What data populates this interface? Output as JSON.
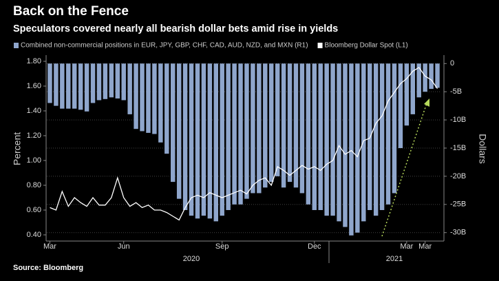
{
  "chart_data": {
    "type": "bar-line",
    "title": "Back on the Fence",
    "subtitle": "Speculators covered nearly all bearish dollar bets amid rise in yields",
    "source": "Source: Bloomberg",
    "ylabel": "Percent",
    "y2label": "Dollars",
    "year_labels": [
      "2020",
      "2021"
    ],
    "categories": [
      "Mar",
      null,
      null,
      null,
      null,
      null,
      null,
      null,
      null,
      null,
      null,
      null,
      "Jun",
      null,
      null,
      null,
      null,
      null,
      null,
      null,
      null,
      null,
      null,
      null,
      null,
      null,
      null,
      null,
      "Sep",
      null,
      null,
      null,
      null,
      null,
      null,
      null,
      null,
      null,
      null,
      null,
      null,
      null,
      null,
      "Dec",
      null,
      null,
      null,
      null,
      null,
      null,
      null,
      null,
      null,
      null,
      null,
      null,
      null,
      null,
      "Mar",
      null,
      null,
      "Mar",
      null,
      null
    ],
    "series": [
      {
        "name": "Combined non-commercial positions in EUR, JPY, GBP, CHF, CAD, AUD, NZD, and MXN (R1)",
        "type": "bar",
        "axis": "y2",
        "color": "#8fa6cc",
        "values": [
          -7,
          -7.5,
          -8,
          -8,
          -8,
          -8.2,
          -8.5,
          -7,
          -6.5,
          -6.3,
          -6,
          -6.2,
          -6.5,
          -9,
          -11.6,
          -12,
          -12.3,
          -12.5,
          -14,
          -16,
          -21,
          -24,
          -26,
          -27,
          -27.5,
          -27,
          -27.5,
          -28,
          -27,
          -26,
          -25,
          -25,
          -24,
          -23,
          -23,
          -22,
          -21,
          -20,
          -22,
          -21,
          -22,
          -23,
          -25,
          -26,
          -26,
          -27,
          -27,
          -28,
          -29,
          -30.5,
          -30,
          -28,
          -26,
          -27,
          -26,
          -25,
          -23,
          -15,
          -11,
          -9,
          -6,
          -5,
          -4.5,
          -4.3
        ]
      },
      {
        "name": "Bloomberg Dollar Spot (L1)",
        "type": "line",
        "axis": "y",
        "color": "#ffffff",
        "values": [
          0.62,
          0.6,
          0.75,
          0.63,
          0.7,
          0.66,
          0.63,
          0.7,
          0.64,
          0.64,
          0.7,
          0.86,
          0.7,
          0.63,
          0.66,
          0.62,
          0.64,
          0.6,
          0.6,
          0.58,
          0.55,
          0.52,
          0.62,
          0.7,
          0.72,
          0.7,
          0.74,
          0.72,
          0.7,
          0.72,
          0.74,
          0.76,
          0.73,
          0.8,
          0.84,
          0.86,
          0.8,
          0.95,
          0.92,
          0.88,
          0.92,
          0.96,
          0.93,
          0.95,
          0.92,
          0.97,
          1.0,
          1.12,
          1.05,
          1.08,
          1.03,
          1.16,
          1.18,
          1.3,
          1.36,
          1.48,
          1.55,
          1.62,
          1.66,
          1.72,
          1.75,
          1.68,
          1.65,
          1.58
        ]
      }
    ],
    "ylim": [
      0.35,
      1.85
    ],
    "yticks": [
      {
        "value": 0.4,
        "label": "0.40"
      },
      {
        "value": 0.6,
        "label": "0.60"
      },
      {
        "value": 0.8,
        "label": "0.80"
      },
      {
        "value": 1.0,
        "label": "1.00"
      },
      {
        "value": 1.2,
        "label": "1.20"
      },
      {
        "value": 1.4,
        "label": "1.40"
      },
      {
        "value": 1.6,
        "label": "1.60"
      },
      {
        "value": 1.8,
        "label": "1.80"
      }
    ],
    "y2lim": [
      -31.5,
      1.5
    ],
    "y2ticks": [
      0,
      {
        "value": -5,
        "label": "-5B"
      },
      {
        "value": -10,
        "label": "-10B"
      },
      {
        "value": -15,
        "label": "-15B"
      },
      {
        "value": -20,
        "label": "-20B"
      },
      {
        "value": -25,
        "label": "-25B"
      },
      {
        "value": -30,
        "label": "-30B"
      }
    ],
    "grid": true
  }
}
